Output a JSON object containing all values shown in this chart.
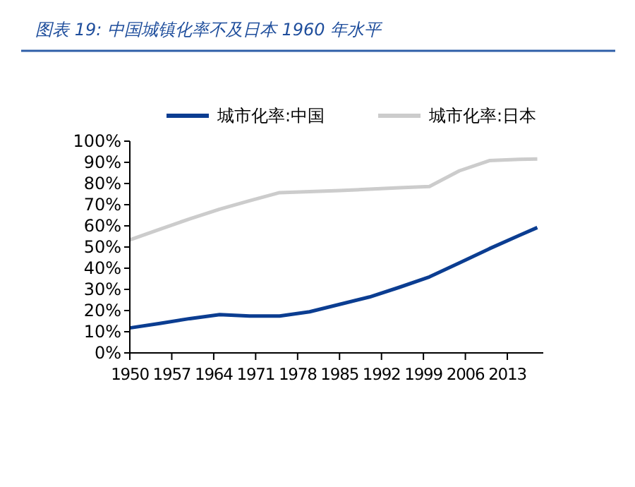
{
  "chart_data": {
    "type": "line",
    "title": "图表 19:  中国城镇化率不及日本 1960 年水平",
    "x": [
      1950,
      1955,
      1960,
      1965,
      1970,
      1975,
      1980,
      1985,
      1990,
      1995,
      2000,
      2005,
      2010,
      2015,
      2018
    ],
    "series": [
      {
        "name": "城市化率:中国",
        "color": "#0b3d91",
        "values": [
          11.8,
          13.9,
          16.2,
          18.1,
          17.4,
          17.4,
          19.4,
          22.9,
          26.4,
          31.0,
          35.9,
          42.5,
          49.2,
          55.5,
          59.2
        ]
      },
      {
        "name": "城市化率:日本",
        "color": "#cccccc",
        "values": [
          53.4,
          58.4,
          63.3,
          67.9,
          71.9,
          75.7,
          76.2,
          76.7,
          77.3,
          78.0,
          78.6,
          86.0,
          90.8,
          91.4,
          91.6
        ]
      }
    ],
    "xlim": [
      1950,
      2019
    ],
    "xticks": [
      1950,
      1957,
      1964,
      1971,
      1978,
      1985,
      1992,
      1999,
      2006,
      2013
    ],
    "ylim": [
      0,
      100
    ],
    "yticks": [
      {
        "value": 0,
        "label": "0%"
      },
      {
        "value": 10,
        "label": "10%"
      },
      {
        "value": 20,
        "label": "20%"
      },
      {
        "value": 30,
        "label": "30%"
      },
      {
        "value": 40,
        "label": "40%"
      },
      {
        "value": 50,
        "label": "50%"
      },
      {
        "value": 60,
        "label": "60%"
      },
      {
        "value": 70,
        "label": "70%"
      },
      {
        "value": 80,
        "label": "80%"
      },
      {
        "value": 90,
        "label": "90%"
      },
      {
        "value": 100,
        "label": "100%"
      }
    ],
    "grid": false,
    "legend": "top",
    "marker": "none",
    "line_style": "solid"
  }
}
